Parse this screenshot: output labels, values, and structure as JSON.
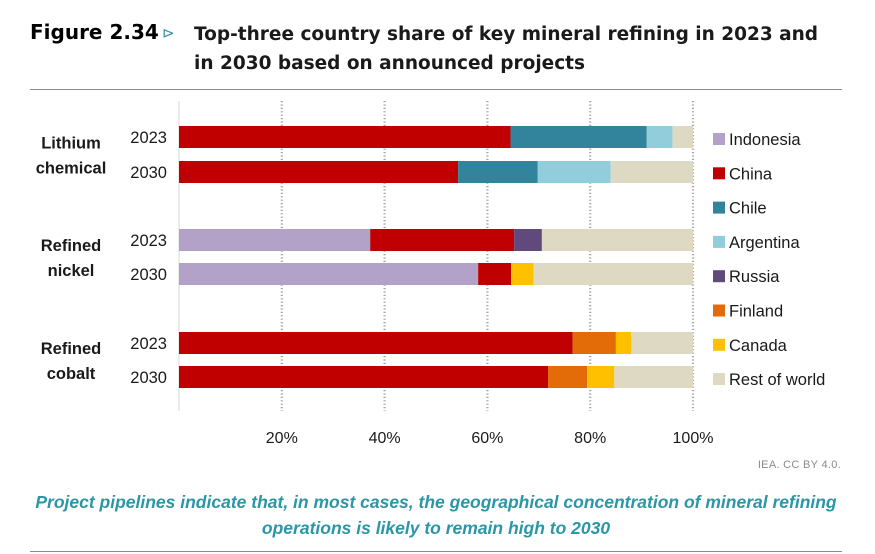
{
  "figure": {
    "number": "Figure 2.34",
    "arrow": "⊳",
    "title": "Top-three country share of key mineral refining in 2023 and in 2030 based on announced projects"
  },
  "source": "IEA. CC BY 4.0.",
  "caption": "Project pipelines indicate that, in most cases, the geographical concentration of mineral refining operations is likely to remain high to 2030",
  "colors": {
    "Indonesia": "#b3a2c8",
    "China": "#c00000",
    "Chile": "#31849b",
    "Argentina": "#92cddc",
    "Russia": "#604a7b",
    "Finland": "#e36c09",
    "Canada": "#ffc000",
    "Rest of world": "#ddd9c3"
  },
  "chart_data": {
    "type": "bar",
    "orientation": "horizontal",
    "stacked": true,
    "xlim": [
      0,
      100
    ],
    "x_ticks": [
      "20%",
      "40%",
      "60%",
      "80%",
      "100%"
    ],
    "x_tick_values": [
      20,
      40,
      60,
      80,
      100
    ],
    "grid": "vertical dotted",
    "legend_position": "right",
    "series_order": [
      "Indonesia",
      "China",
      "Chile",
      "Argentina",
      "Russia",
      "Finland",
      "Canada",
      "Rest of world"
    ],
    "groups": [
      {
        "label_lines": [
          "Lithium",
          "chemical"
        ],
        "rows": [
          {
            "year": "2023",
            "segments": [
              {
                "series": "China",
                "value": 64.5
              },
              {
                "series": "Chile",
                "value": 26.5
              },
              {
                "series": "Argentina",
                "value": 5
              },
              {
                "series": "Rest of world",
                "value": 4
              }
            ]
          },
          {
            "year": "2030",
            "segments": [
              {
                "series": "China",
                "value": 54.3
              },
              {
                "series": "Chile",
                "value": 15.5
              },
              {
                "series": "Argentina",
                "value": 14.2
              },
              {
                "series": "Rest of world",
                "value": 16
              }
            ]
          }
        ]
      },
      {
        "label_lines": [
          "Refined",
          "nickel"
        ],
        "rows": [
          {
            "year": "2023",
            "segments": [
              {
                "series": "Indonesia",
                "value": 37.2
              },
              {
                "series": "China",
                "value": 28
              },
              {
                "series": "Russia",
                "value": 5.4
              },
              {
                "series": "Rest of world",
                "value": 29.4
              }
            ]
          },
          {
            "year": "2030",
            "segments": [
              {
                "series": "Indonesia",
                "value": 58.2
              },
              {
                "series": "China",
                "value": 6.4
              },
              {
                "series": "Canada",
                "value": 4.4
              },
              {
                "series": "Rest of world",
                "value": 31
              }
            ]
          }
        ]
      },
      {
        "label_lines": [
          "Refined",
          "cobalt"
        ],
        "rows": [
          {
            "year": "2023",
            "segments": [
              {
                "series": "China",
                "value": 76.6
              },
              {
                "series": "Finland",
                "value": 8.4
              },
              {
                "series": "Canada",
                "value": 3
              },
              {
                "series": "Rest of world",
                "value": 12
              }
            ]
          },
          {
            "year": "2030",
            "segments": [
              {
                "series": "China",
                "value": 71.8
              },
              {
                "series": "Finland",
                "value": 7.6
              },
              {
                "series": "Canada",
                "value": 5.3
              },
              {
                "series": "Rest of world",
                "value": 15.3
              }
            ]
          }
        ]
      }
    ]
  }
}
